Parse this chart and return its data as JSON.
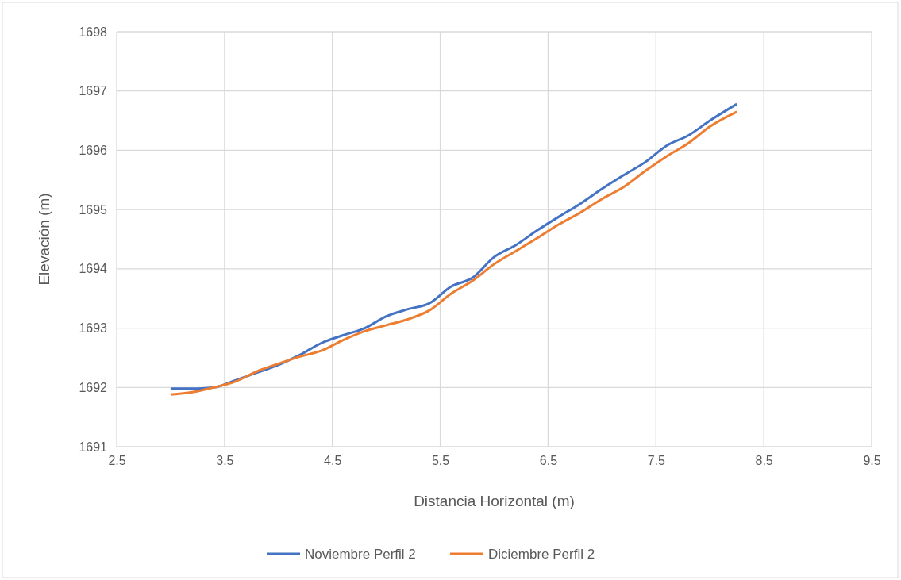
{
  "chart_data": {
    "type": "line",
    "xlabel": "Distancia Horizontal (m)",
    "ylabel": "Elevación (m)",
    "x": [
      3.0,
      3.2,
      3.4,
      3.6,
      3.8,
      4.0,
      4.2,
      4.4,
      4.6,
      4.8,
      5.0,
      5.2,
      5.4,
      5.6,
      5.8,
      6.0,
      6.2,
      6.4,
      6.6,
      6.8,
      7.0,
      7.2,
      7.4,
      7.6,
      7.8,
      8.0,
      8.25
    ],
    "series": [
      {
        "name": "Noviembre Perfil 2",
        "color": "#4472c4",
        "values": [
          1691.98,
          1691.98,
          1692.0,
          1692.12,
          1692.25,
          1692.38,
          1692.55,
          1692.75,
          1692.88,
          1693.0,
          1693.2,
          1693.32,
          1693.42,
          1693.7,
          1693.85,
          1694.2,
          1694.4,
          1694.65,
          1694.88,
          1695.1,
          1695.35,
          1695.58,
          1695.8,
          1696.08,
          1696.25,
          1696.5,
          1696.78
        ]
      },
      {
        "name": "Diciembre Perfil 2",
        "color": "#ed7d31",
        "values": [
          1691.88,
          1691.92,
          1692.0,
          1692.1,
          1692.27,
          1692.4,
          1692.52,
          1692.62,
          1692.8,
          1692.95,
          1693.05,
          1693.15,
          1693.3,
          1693.58,
          1693.8,
          1694.08,
          1694.3,
          1694.52,
          1694.75,
          1694.95,
          1695.18,
          1695.38,
          1695.65,
          1695.9,
          1696.12,
          1696.4,
          1696.65
        ]
      }
    ],
    "xlim": [
      2.5,
      9.5
    ],
    "xticks": [
      2.5,
      3.5,
      4.5,
      5.5,
      6.5,
      7.5,
      8.5,
      9.5
    ],
    "ylim": [
      1691,
      1698
    ],
    "yticks": [
      1691,
      1692,
      1693,
      1694,
      1695,
      1696,
      1697,
      1698
    ],
    "grid": true,
    "legend": "bottom",
    "marker": "none",
    "line_style": "solid"
  }
}
